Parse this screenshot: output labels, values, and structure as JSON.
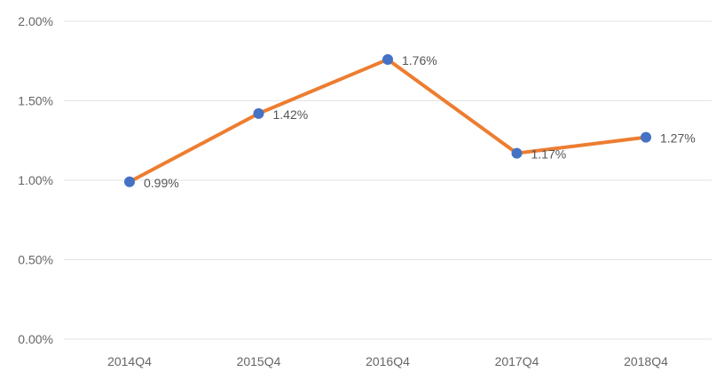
{
  "chart_data": {
    "type": "line",
    "title": "",
    "xlabel": "",
    "ylabel": "",
    "categories": [
      "2014Q4",
      "2015Q4",
      "2016Q4",
      "2017Q4",
      "2018Q4"
    ],
    "series": [
      {
        "values": [
          0.99,
          1.42,
          1.76,
          1.17,
          1.27
        ],
        "labels": [
          "0.99%",
          "1.42%",
          "1.76%",
          "1.17%",
          "1.27%"
        ],
        "line_color": "#ED7D31",
        "marker_color": "#4472C4"
      }
    ],
    "ylim": [
      0,
      2
    ],
    "y_ticks": [
      {
        "value": 0,
        "label": "0.00%"
      },
      {
        "value": 0.5,
        "label": "0.50%"
      },
      {
        "value": 1,
        "label": "1.00%"
      },
      {
        "value": 1.5,
        "label": "1.50%"
      },
      {
        "value": 2,
        "label": "2.00%"
      }
    ],
    "grid": true,
    "legend": "none"
  }
}
